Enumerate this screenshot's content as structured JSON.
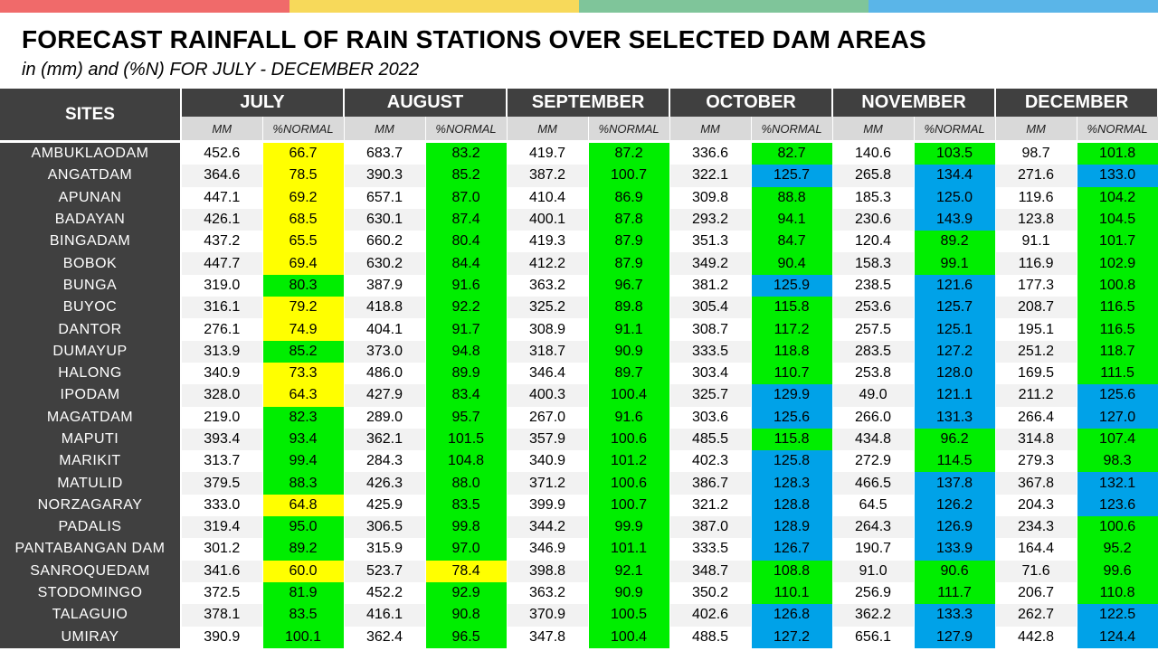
{
  "header": {
    "title": "FORECAST RAINFALL OF RAIN STATIONS OVER SELECTED DAM AREAS",
    "subtitle": "in (mm) and (%N) FOR JULY - DECEMBER 2022",
    "stripe_colors": [
      "#f06a6a",
      "#f7d95a",
      "#7fc59a",
      "#5ab5e8"
    ]
  },
  "colors": {
    "yellow": "#ffff00",
    "green": "#00ee00",
    "blue": "#00a2e8"
  },
  "table": {
    "site_header": "SITES",
    "months": [
      "JULY",
      "AUGUST",
      "SEPTEMBER",
      "OCTOBER",
      "NOVEMBER",
      "DECEMBER"
    ],
    "sub_headers": [
      "MM",
      "%NORMAL"
    ],
    "rows": [
      {
        "site": "AMBUKLAODAM",
        "vals": [
          "452.6",
          "66.7",
          "683.7",
          "83.2",
          "419.7",
          "87.2",
          "336.6",
          "82.7",
          "140.6",
          "103.5",
          "98.7",
          "101.8"
        ]
      },
      {
        "site": "ANGATDAM",
        "vals": [
          "364.6",
          "78.5",
          "390.3",
          "85.2",
          "387.2",
          "100.7",
          "322.1",
          "125.7",
          "265.8",
          "134.4",
          "271.6",
          "133.0"
        ]
      },
      {
        "site": "APUNAN",
        "vals": [
          "447.1",
          "69.2",
          "657.1",
          "87.0",
          "410.4",
          "86.9",
          "309.8",
          "88.8",
          "185.3",
          "125.0",
          "119.6",
          "104.2"
        ]
      },
      {
        "site": "BADAYAN",
        "vals": [
          "426.1",
          "68.5",
          "630.1",
          "87.4",
          "400.1",
          "87.8",
          "293.2",
          "94.1",
          "230.6",
          "143.9",
          "123.8",
          "104.5"
        ]
      },
      {
        "site": "BINGADAM",
        "vals": [
          "437.2",
          "65.5",
          "660.2",
          "80.4",
          "419.3",
          "87.9",
          "351.3",
          "84.7",
          "120.4",
          "89.2",
          "91.1",
          "101.7"
        ]
      },
      {
        "site": "BOBOK",
        "vals": [
          "447.7",
          "69.4",
          "630.2",
          "84.4",
          "412.2",
          "87.9",
          "349.2",
          "90.4",
          "158.3",
          "99.1",
          "116.9",
          "102.9"
        ]
      },
      {
        "site": "BUNGA",
        "vals": [
          "319.0",
          "80.3",
          "387.9",
          "91.6",
          "363.2",
          "96.7",
          "381.2",
          "125.9",
          "238.5",
          "121.6",
          "177.3",
          "100.8"
        ]
      },
      {
        "site": "BUYOC",
        "vals": [
          "316.1",
          "79.2",
          "418.8",
          "92.2",
          "325.2",
          "89.8",
          "305.4",
          "115.8",
          "253.6",
          "125.7",
          "208.7",
          "116.5"
        ]
      },
      {
        "site": "DANTOR",
        "vals": [
          "276.1",
          "74.9",
          "404.1",
          "91.7",
          "308.9",
          "91.1",
          "308.7",
          "117.2",
          "257.5",
          "125.1",
          "195.1",
          "116.5"
        ]
      },
      {
        "site": "DUMAYUP",
        "vals": [
          "313.9",
          "85.2",
          "373.0",
          "94.8",
          "318.7",
          "90.9",
          "333.5",
          "118.8",
          "283.5",
          "127.2",
          "251.2",
          "118.7"
        ]
      },
      {
        "site": "HALONG",
        "vals": [
          "340.9",
          "73.3",
          "486.0",
          "89.9",
          "346.4",
          "89.7",
          "303.4",
          "110.7",
          "253.8",
          "128.0",
          "169.5",
          "111.5"
        ]
      },
      {
        "site": "IPODAM",
        "vals": [
          "328.0",
          "64.3",
          "427.9",
          "83.4",
          "400.3",
          "100.4",
          "325.7",
          "129.9",
          "49.0",
          "121.1",
          "211.2",
          "125.6"
        ]
      },
      {
        "site": "MAGATDAM",
        "vals": [
          "219.0",
          "82.3",
          "289.0",
          "95.7",
          "267.0",
          "91.6",
          "303.6",
          "125.6",
          "266.0",
          "131.3",
          "266.4",
          "127.0"
        ]
      },
      {
        "site": "MAPUTI",
        "vals": [
          "393.4",
          "93.4",
          "362.1",
          "101.5",
          "357.9",
          "100.6",
          "485.5",
          "115.8",
          "434.8",
          "96.2",
          "314.8",
          "107.4"
        ]
      },
      {
        "site": "MARIKIT",
        "vals": [
          "313.7",
          "99.4",
          "284.3",
          "104.8",
          "340.9",
          "101.2",
          "402.3",
          "125.8",
          "272.9",
          "114.5",
          "279.3",
          "98.3"
        ]
      },
      {
        "site": "MATULID",
        "vals": [
          "379.5",
          "88.3",
          "426.3",
          "88.0",
          "371.2",
          "100.6",
          "386.7",
          "128.3",
          "466.5",
          "137.8",
          "367.8",
          "132.1"
        ]
      },
      {
        "site": "NORZAGARAY",
        "vals": [
          "333.0",
          "64.8",
          "425.9",
          "83.5",
          "399.9",
          "100.7",
          "321.2",
          "128.8",
          "64.5",
          "126.2",
          "204.3",
          "123.6"
        ]
      },
      {
        "site": "PADALIS",
        "vals": [
          "319.4",
          "95.0",
          "306.5",
          "99.8",
          "344.2",
          "99.9",
          "387.0",
          "128.9",
          "264.3",
          "126.9",
          "234.3",
          "100.6"
        ]
      },
      {
        "site": "PANTABANGAN DAM",
        "vals": [
          "301.2",
          "89.2",
          "315.9",
          "97.0",
          "346.9",
          "101.1",
          "333.5",
          "126.7",
          "190.7",
          "133.9",
          "164.4",
          "95.2"
        ]
      },
      {
        "site": "SANROQUEDAM",
        "vals": [
          "341.6",
          "60.0",
          "523.7",
          "78.4",
          "398.8",
          "92.1",
          "348.7",
          "108.8",
          "91.0",
          "90.6",
          "71.6",
          "99.6"
        ]
      },
      {
        "site": "STODOMINGO",
        "vals": [
          "372.5",
          "81.9",
          "452.2",
          "92.9",
          "363.2",
          "90.9",
          "350.2",
          "110.1",
          "256.9",
          "111.7",
          "206.7",
          "110.8"
        ]
      },
      {
        "site": "TALAGUIO",
        "vals": [
          "378.1",
          "83.5",
          "416.1",
          "90.8",
          "370.9",
          "100.5",
          "402.6",
          "126.8",
          "362.2",
          "133.3",
          "262.7",
          "122.5"
        ]
      },
      {
        "site": "UMIRAY",
        "vals": [
          "390.9",
          "100.1",
          "362.4",
          "96.5",
          "347.8",
          "100.4",
          "488.5",
          "127.2",
          "656.1",
          "127.9",
          "442.8",
          "124.4"
        ]
      }
    ]
  }
}
